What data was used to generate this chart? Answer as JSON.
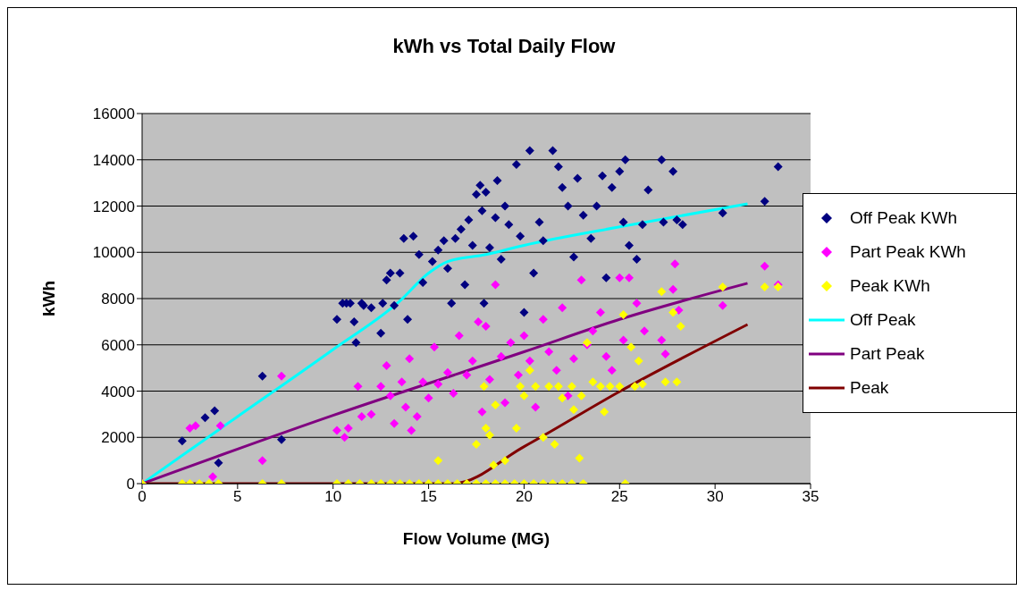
{
  "chart_data": {
    "type": "scatter",
    "title": "kWh vs Total Daily Flow",
    "xlabel": "Flow Volume (MG)",
    "ylabel": "kWh",
    "xlim": [
      0,
      35
    ],
    "xticks": [
      0,
      5,
      10,
      15,
      20,
      25,
      30,
      35
    ],
    "ylim": [
      0,
      16000
    ],
    "yticks": [
      0,
      2000,
      4000,
      6000,
      8000,
      10000,
      12000,
      14000,
      16000
    ],
    "grid": "y",
    "legend": "right",
    "series": [
      {
        "name": "Off Peak KWh",
        "marker": "diamond",
        "color": "#000080",
        "x": [
          0,
          2.1,
          3.3,
          3.8,
          4.0,
          6.3,
          7.3,
          10.2,
          10.5,
          10.7,
          10.9,
          11.1,
          11.2,
          11.5,
          11.6,
          12.0,
          12.5,
          12.6,
          12.8,
          13.0,
          13.2,
          13.5,
          13.7,
          13.9,
          14.2,
          14.5,
          14.7,
          15.2,
          15.5,
          15.8,
          16.0,
          16.2,
          16.4,
          16.7,
          16.9,
          17.1,
          17.3,
          17.5,
          17.7,
          17.8,
          17.9,
          18.0,
          18.2,
          18.5,
          18.6,
          18.8,
          19.0,
          19.2,
          19.6,
          19.8,
          20.0,
          20.3,
          20.5,
          20.8,
          21.0,
          21.5,
          21.8,
          22.0,
          22.3,
          22.6,
          22.8,
          23.1,
          23.5,
          23.8,
          24.1,
          24.3,
          24.6,
          25.0,
          25.2,
          25.3,
          25.5,
          25.9,
          26.2,
          26.5,
          27.2,
          27.3,
          27.8,
          28.0,
          28.3,
          30.4,
          32.6,
          33.3
        ],
        "values": [
          0,
          1850,
          2850,
          3150,
          900,
          4650,
          1900,
          7100,
          7800,
          7800,
          7800,
          7000,
          6100,
          7800,
          7700,
          7600,
          6500,
          7800,
          8800,
          9100,
          7700,
          9100,
          10600,
          7100,
          10700,
          9900,
          8700,
          9600,
          10100,
          10500,
          9300,
          7800,
          10600,
          11000,
          8600,
          11400,
          10300,
          12500,
          12900,
          11800,
          7800,
          12600,
          10200,
          11500,
          13100,
          9700,
          12000,
          11200,
          13800,
          10700,
          7400,
          14400,
          9100,
          11300,
          10500,
          14400,
          13700,
          12800,
          12000,
          9800,
          13200,
          11600,
          10600,
          12000,
          13300,
          8900,
          12800,
          13500,
          11300,
          14000,
          10300,
          9700,
          11200,
          12700,
          14000,
          11300,
          13500,
          11400,
          11200,
          11700,
          12200,
          13700
        ]
      },
      {
        "name": "Part Peak KWh",
        "marker": "diamond",
        "color": "#ff00ff",
        "x": [
          0,
          2.5,
          2.8,
          3.7,
          4.1,
          6.3,
          7.3,
          10.2,
          10.6,
          10.8,
          11.3,
          11.5,
          12.0,
          12.5,
          12.8,
          13.0,
          13.2,
          13.6,
          13.8,
          14.0,
          14.1,
          14.4,
          14.7,
          15.0,
          15.3,
          15.5,
          16.0,
          16.3,
          16.6,
          17.0,
          17.3,
          17.6,
          17.8,
          18.0,
          18.2,
          18.5,
          18.8,
          19.0,
          19.3,
          19.7,
          20.0,
          20.3,
          20.6,
          21.0,
          21.3,
          21.7,
          22.0,
          22.3,
          22.6,
          23.0,
          23.3,
          23.6,
          24.0,
          24.3,
          24.6,
          25.0,
          25.2,
          25.5,
          25.9,
          26.3,
          27.2,
          27.4,
          27.8,
          27.9,
          28.1,
          30.4,
          32.6,
          33.3
        ],
        "values": [
          0,
          2400,
          2500,
          300,
          2500,
          1000,
          4650,
          2300,
          2000,
          2400,
          4200,
          2900,
          3000,
          4200,
          5100,
          3800,
          2600,
          4400,
          3300,
          5400,
          2300,
          2900,
          4400,
          3700,
          5900,
          4300,
          4800,
          3900,
          6400,
          4700,
          5300,
          7000,
          3100,
          6800,
          4500,
          8600,
          5500,
          3500,
          6100,
          4700,
          6400,
          5300,
          3300,
          7100,
          5700,
          4900,
          7600,
          3800,
          5400,
          8800,
          6000,
          6600,
          7400,
          5500,
          4900,
          8900,
          6200,
          8900,
          7800,
          6600,
          6200,
          5600,
          8400,
          9500,
          7500,
          7700,
          9400,
          8600
        ]
      },
      {
        "name": "Peak KWh",
        "marker": "diamond",
        "color": "#ffff00",
        "x": [
          0,
          2.1,
          2.5,
          3.0,
          3.5,
          4.0,
          6.3,
          7.3,
          10.2,
          10.8,
          11.4,
          12.0,
          12.5,
          13.0,
          13.5,
          14.0,
          14.5,
          15.0,
          15.5,
          16.0,
          16.5,
          17.0,
          17.5,
          18.0,
          18.5,
          19.0,
          19.5,
          20.0,
          20.5,
          21.0,
          21.5,
          22.0,
          22.5,
          23.1,
          25.3,
          15.5,
          17.5,
          17.9,
          18.0,
          18.2,
          18.5,
          18.4,
          19.0,
          19.6,
          19.8,
          20.0,
          20.3,
          20.6,
          21.0,
          21.3,
          21.6,
          21.8,
          22.0,
          22.5,
          22.6,
          22.9,
          23.0,
          23.3,
          23.6,
          24.0,
          24.2,
          24.5,
          25.0,
          25.2,
          25.6,
          25.8,
          26.2,
          26.0,
          27.2,
          27.4,
          27.8,
          28.0,
          28.2,
          30.4,
          32.6,
          33.3
        ],
        "values": [
          0,
          0,
          0,
          0,
          0,
          0,
          0,
          0,
          0,
          0,
          0,
          0,
          0,
          0,
          0,
          0,
          0,
          0,
          0,
          0,
          0,
          0,
          0,
          0,
          0,
          0,
          0,
          0,
          0,
          0,
          0,
          0,
          0,
          0,
          0,
          1000,
          1700,
          4200,
          2400,
          2100,
          3400,
          800,
          1000,
          2400,
          4200,
          3800,
          4900,
          4200,
          2000,
          4200,
          1700,
          4200,
          3700,
          4200,
          3200,
          1100,
          3800,
          6100,
          4400,
          4200,
          3100,
          4200,
          4200,
          7300,
          5900,
          4200,
          4300,
          5300,
          8300,
          4400,
          7400,
          4400,
          6800,
          8500,
          8500,
          8500
        ]
      },
      {
        "name": "Off Peak",
        "type": "line",
        "marker": "none",
        "color": "#00ffff",
        "x": [
          0,
          5,
          10,
          13.5,
          15,
          16,
          18,
          20,
          25,
          31.7
        ],
        "values": [
          0,
          2900,
          5800,
          7900,
          9100,
          9600,
          9900,
          10300,
          11100,
          12100
        ]
      },
      {
        "name": "Part Peak",
        "type": "line",
        "marker": "none",
        "color": "#800080",
        "x": [
          0,
          10,
          20,
          25,
          31.7
        ],
        "values": [
          0,
          2950,
          5700,
          7100,
          8660
        ]
      },
      {
        "name": "Peak",
        "type": "line",
        "marker": "none",
        "color": "#800000",
        "x": [
          0,
          16.3,
          20,
          25,
          31.7
        ],
        "values": [
          0,
          0,
          1600,
          3980,
          6880
        ]
      }
    ]
  }
}
